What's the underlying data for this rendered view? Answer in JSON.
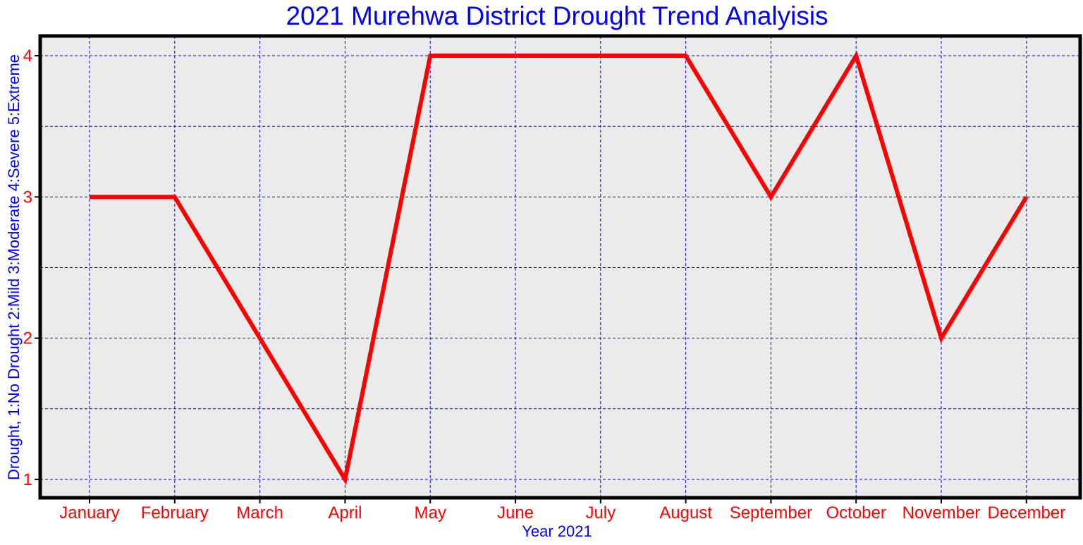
{
  "colors": {
    "title": "#0000ff",
    "axis_label": "#0000ff",
    "tick_label": "#ff0000",
    "line": "#ff0000",
    "grid": "#0000ff",
    "plot_background": "#ebebeb",
    "frame": "#000000"
  },
  "chart_data": {
    "type": "line",
    "title": "2021 Murehwa District Drought Trend Analyisis",
    "xlabel": "Year 2021",
    "ylabel": "Drought, 1:No Drought 2:Mild 3:Moderate 4:Severe 5:Extreme",
    "categories": [
      "January",
      "February",
      "March",
      "April",
      "May",
      "June",
      "July",
      "August",
      "September",
      "October",
      "November",
      "December"
    ],
    "series": [
      {
        "values": [
          3,
          3,
          2,
          1,
          4,
          4,
          4,
          4,
          3,
          4,
          2,
          3
        ]
      }
    ],
    "ylim": [
      0.87,
      4.14
    ],
    "yticks": [
      1,
      2,
      3,
      4
    ],
    "ygrid": [
      1,
      1.5,
      2,
      2.5,
      3,
      3.5,
      4
    ],
    "grid": true,
    "legend": "none"
  }
}
